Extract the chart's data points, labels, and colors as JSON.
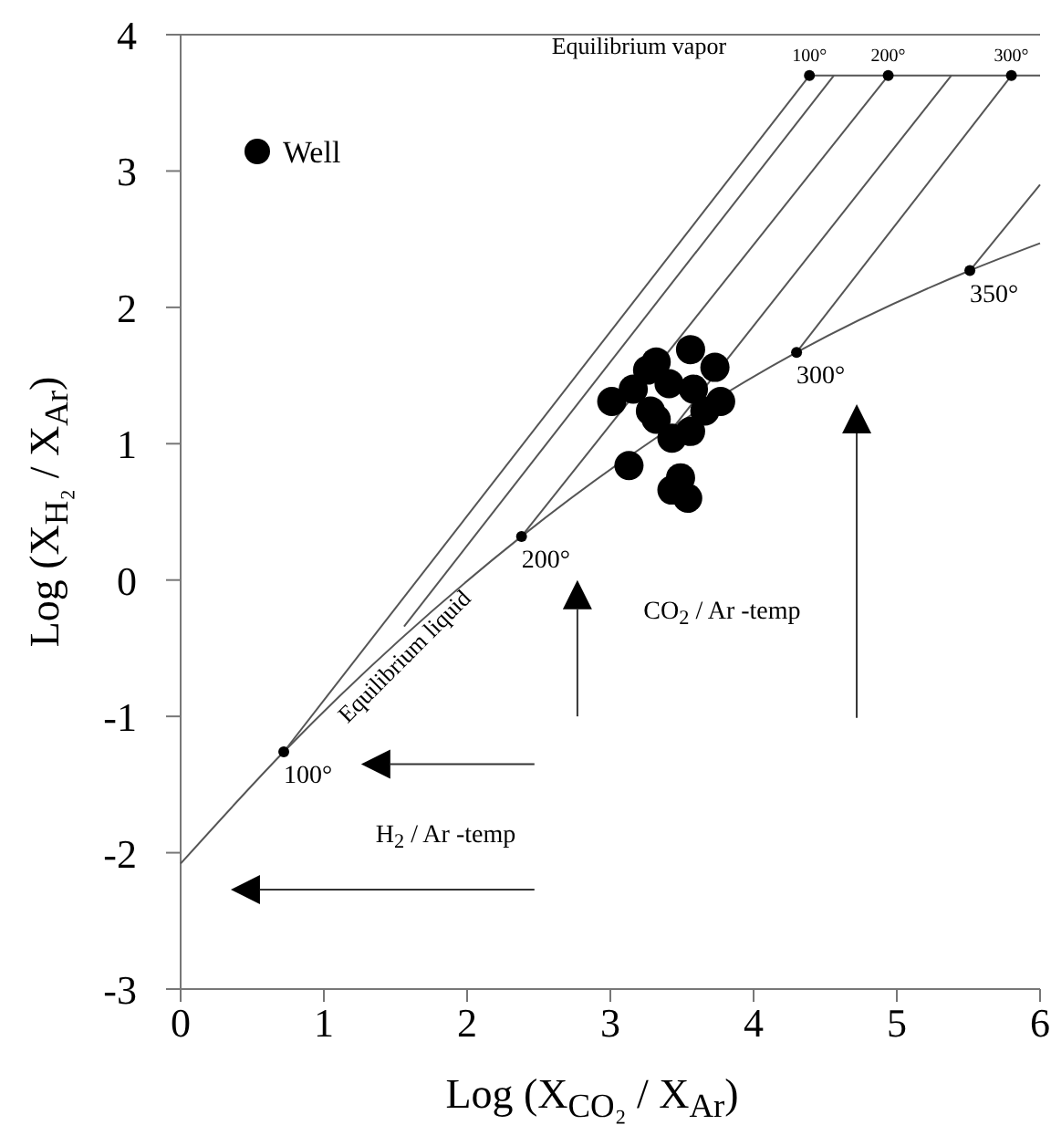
{
  "chart_data": {
    "type": "scatter",
    "xlabel": "Log (X$_{CO₂}$ / X$_{Ar}$)",
    "ylabel": "Log (X$_{H₂}$ / X$_{Ar}$)",
    "xlim": [
      0,
      6
    ],
    "ylim": [
      -3,
      4
    ],
    "xticks": [
      0,
      1,
      2,
      3,
      4,
      5,
      6
    ],
    "yticks": [
      -3,
      -2,
      -1,
      0,
      1,
      2,
      3,
      4
    ],
    "legend": "top left",
    "grid": false,
    "series": [
      {
        "name": "Well",
        "color": "#000000",
        "marker": "circle",
        "x": [
          3.01,
          3.13,
          3.32,
          3.56,
          3.73,
          3.77,
          3.43,
          3.56,
          3.49,
          3.43,
          3.54,
          3.16,
          3.28,
          3.41,
          3.58,
          3.66,
          3.32,
          3.26
        ],
        "values": [
          1.31,
          0.84,
          1.6,
          1.69,
          1.56,
          1.31,
          1.04,
          1.09,
          0.75,
          0.66,
          0.6,
          1.4,
          1.24,
          1.44,
          1.4,
          1.24,
          1.18,
          1.54
        ]
      },
      {
        "color": "#000000",
        "marker": "circle",
        "x": [
          0.72,
          2.38,
          4.3,
          5.51,
          4.39,
          4.94,
          5.8
        ],
        "values": [
          -1.26,
          0.32,
          1.67,
          2.27,
          3.7,
          3.7,
          3.7
        ]
      },
      {
        "color": "#555555",
        "type": "line",
        "x": [
          0,
          0.72,
          2.38,
          4.3,
          5.51,
          6.0
        ],
        "values": [
          -2.08,
          -1.26,
          0.32,
          1.67,
          2.27,
          2.47
        ]
      },
      {
        "color": "#555555",
        "type": "line",
        "x": [
          4.39,
          6.0
        ],
        "values": [
          3.7,
          3.7
        ]
      },
      {
        "color": "#555555",
        "type": "line",
        "x": [
          0.72,
          4.39
        ],
        "values": [
          -1.26,
          3.7
        ]
      },
      {
        "color": "#555555",
        "type": "line",
        "x": [
          1.56,
          4.56
        ],
        "values": [
          -0.34,
          3.7
        ]
      },
      {
        "color": "#555555",
        "type": "line",
        "x": [
          2.38,
          4.94
        ],
        "values": [
          0.32,
          3.7
        ]
      },
      {
        "color": "#555555",
        "type": "line",
        "x": [
          3.35,
          5.38
        ],
        "values": [
          1.0,
          3.7
        ]
      },
      {
        "color": "#555555",
        "type": "line",
        "x": [
          4.3,
          5.8
        ],
        "values": [
          1.67,
          3.7
        ]
      },
      {
        "color": "#555555",
        "type": "line",
        "x": [
          5.51,
          6.0
        ],
        "values": [
          2.27,
          2.9
        ]
      }
    ],
    "annotations": [
      "Equilibrium vapor",
      "Equilibrium liquid",
      "CO$_{2}$ / Ar -temp",
      "H$_{2}$ / Ar -temp",
      {
        "text": "100°",
        "x": 0.72,
        "y": -1.26
      },
      {
        "text": "200°",
        "x": 2.38,
        "y": 0.32
      },
      {
        "text": "300°",
        "x": 4.3,
        "y": 1.67
      },
      {
        "text": "350°",
        "x": 5.51,
        "y": 2.27
      },
      {
        "text": "100°",
        "x": 4.39,
        "y": 3.7
      },
      {
        "text": "200°",
        "x": 4.94,
        "y": 3.7
      },
      {
        "text": "300°",
        "x": 5.8,
        "y": 3.7
      }
    ]
  }
}
